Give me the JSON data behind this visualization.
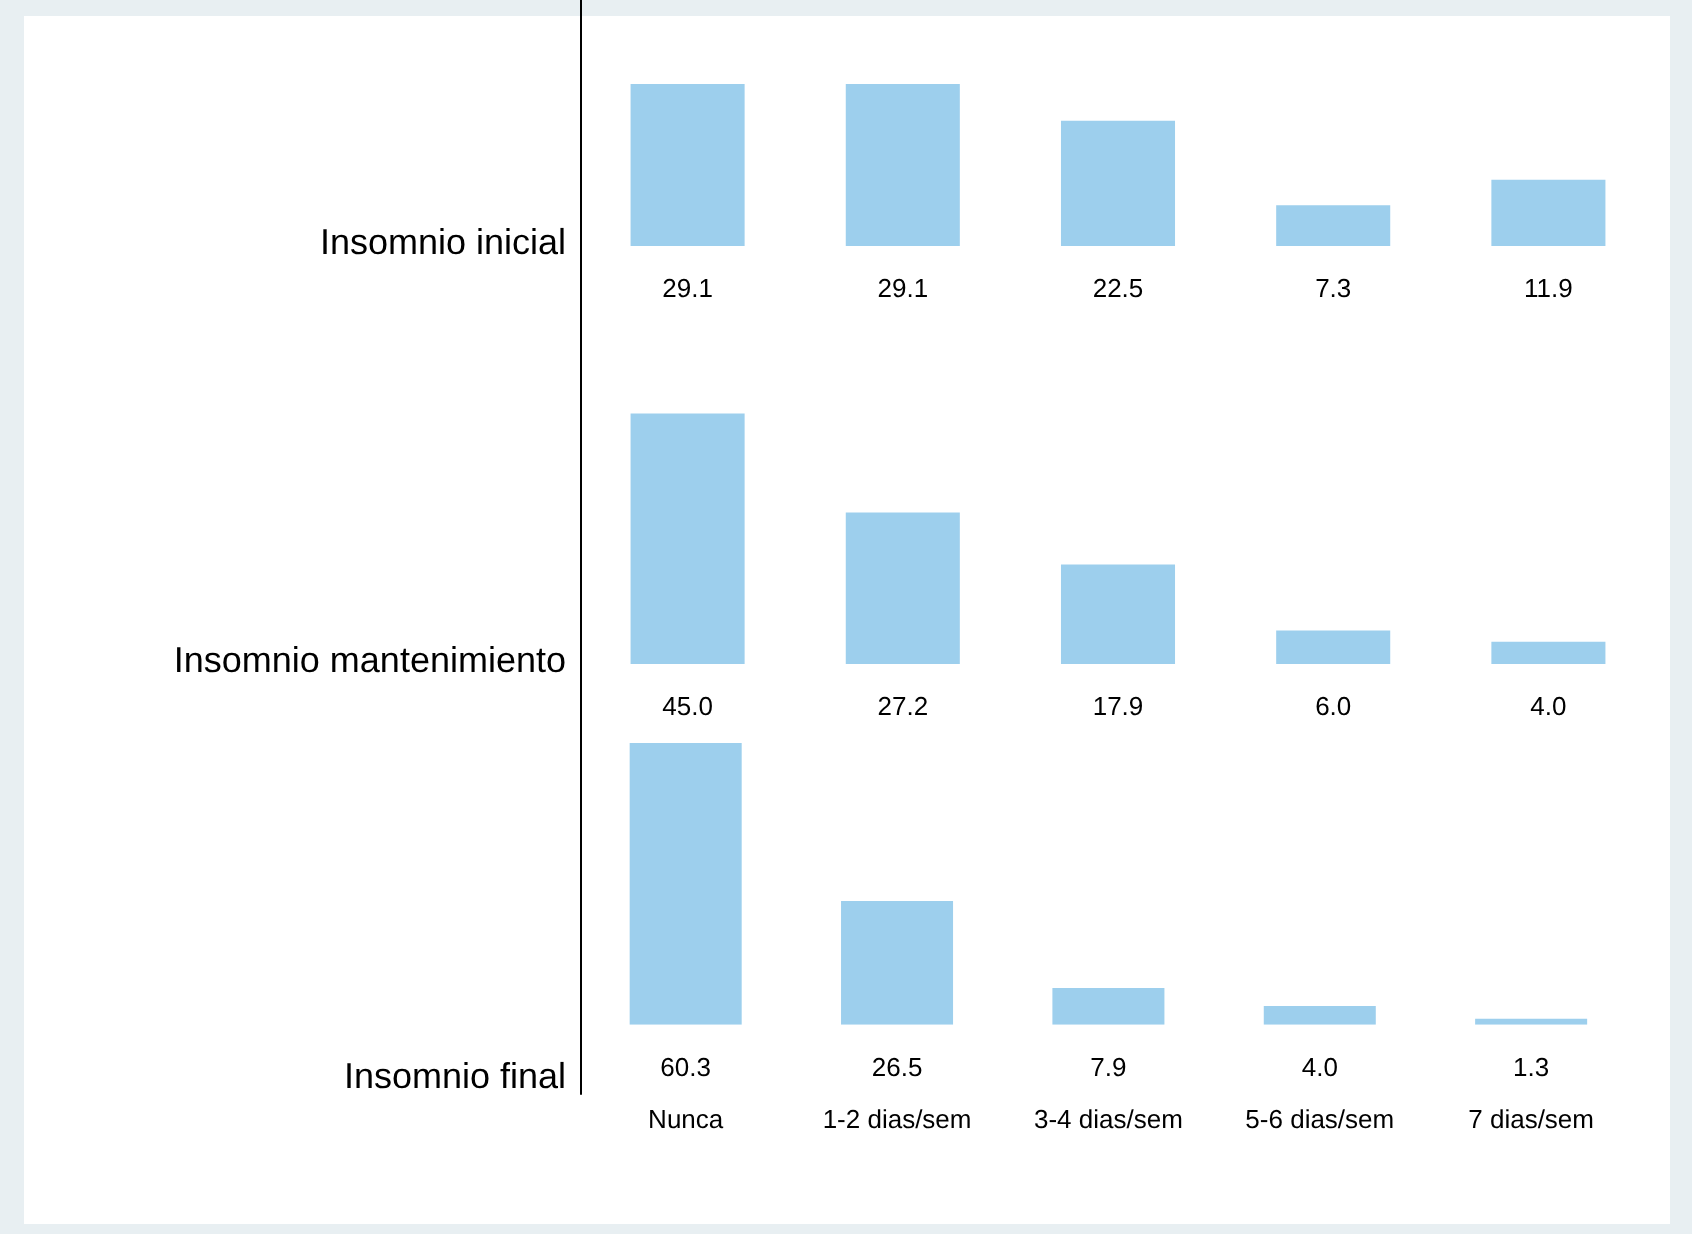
{
  "chart_data": [
    {
      "type": "bar",
      "ylabel": "Insomnio inicial",
      "categories": [
        null,
        null,
        null,
        null,
        null
      ],
      "values": [
        29.1,
        29.1,
        22.5,
        7.3,
        11.9
      ],
      "value_labels": [
        "29.1",
        "29.1",
        "22.5",
        "7.3",
        "11.9"
      ],
      "color": "#9dcfed",
      "tick_labels": false
    },
    {
      "type": "bar",
      "ylabel": "Insomnio mantenimiento",
      "categories": [
        null,
        null,
        null,
        null,
        null
      ],
      "values": [
        45.0,
        27.2,
        17.9,
        6.0,
        4.0
      ],
      "value_labels": [
        "45.0",
        "27.2",
        "17.9",
        "6.0",
        "4.0"
      ],
      "color": "#9dcfed",
      "tick_labels": false
    },
    {
      "type": "bar",
      "ylabel": "Insomnio final",
      "categories": [
        "Nunca",
        "1-2 dias/sem",
        "3-4 dias/sem",
        "5-6 dias/sem",
        "7 dias/sem"
      ],
      "values": [
        60.3,
        26.5,
        7.9,
        4.0,
        1.3
      ],
      "value_labels": [
        "60.3",
        "26.5",
        "7.9",
        "4.0",
        "1.3"
      ],
      "color": "#9dcfed",
      "tick_labels": "x"
    }
  ]
}
